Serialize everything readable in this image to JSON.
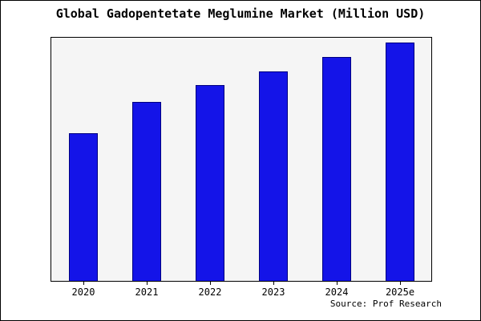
{
  "chart_data": {
    "type": "bar",
    "title": "Global Gadopentetate Meglumine Market (Million USD)",
    "categories": [
      "2020",
      "2021",
      "2022",
      "2023",
      "2024",
      "2025e"
    ],
    "values": [
      62,
      75,
      82,
      88,
      94,
      100
    ],
    "xlabel": "",
    "ylabel": "",
    "ylim": [
      0,
      102
    ],
    "grid": false,
    "legend": false,
    "colors": {
      "bar_fill": "#1414e8",
      "bar_border": "#000080",
      "plot_bg": "#f5f5f5",
      "frame_border": "#000000"
    }
  },
  "footer": {
    "source": "Source: Prof Research"
  }
}
